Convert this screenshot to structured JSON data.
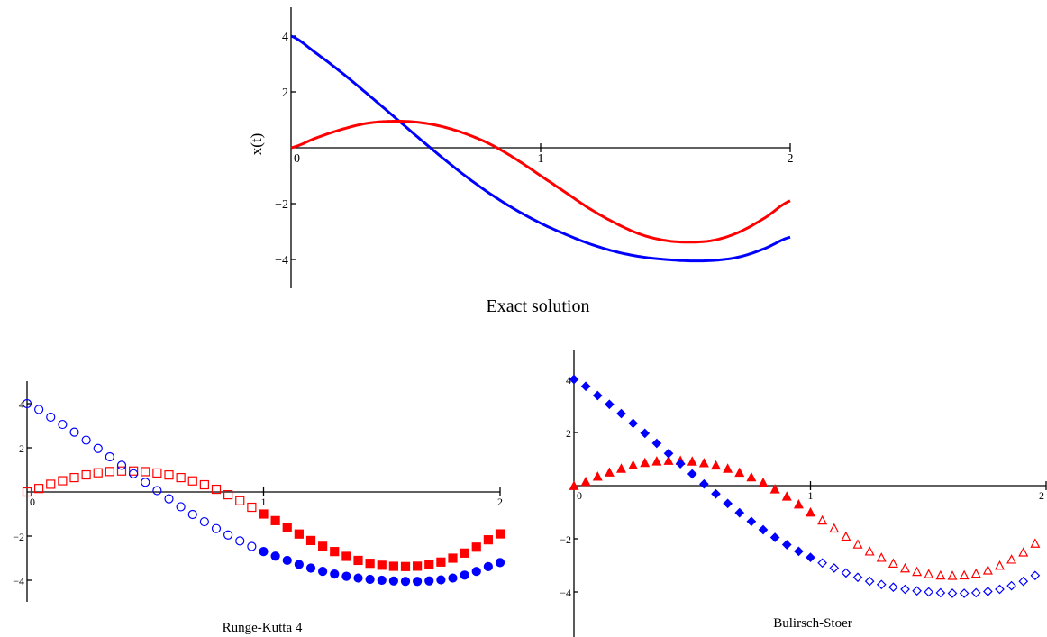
{
  "chart_data": [
    {
      "type": "line",
      "title": "Exact solution",
      "ylabel": "x(t)",
      "xlabel": "",
      "xlim": [
        0,
        2
      ],
      "ylim": [
        -5,
        5
      ],
      "xticks": [
        "0",
        "1",
        "2"
      ],
      "yticks": [
        "4",
        "2",
        "−2",
        "−4"
      ],
      "series": [
        {
          "color": "#0000ff",
          "style": "line",
          "x": [
            0,
            0.1,
            0.2,
            0.3,
            0.4,
            0.5,
            0.6,
            0.7,
            0.8,
            0.9,
            1.0,
            1.1,
            1.2,
            1.3,
            1.4,
            1.5,
            1.6,
            1.7,
            1.8,
            1.9,
            2.0
          ],
          "y": [
            4.0,
            3.39,
            2.71,
            1.97,
            1.21,
            0.44,
            -0.31,
            -1.02,
            -1.66,
            -2.22,
            -2.7,
            -3.1,
            -3.45,
            -3.72,
            -3.9,
            -4.0,
            -4.05,
            -4.03,
            -3.9,
            -3.6,
            -3.2
          ]
        },
        {
          "color": "#ff0000",
          "style": "line",
          "x": [
            0,
            0.1,
            0.2,
            0.3,
            0.4,
            0.5,
            0.6,
            0.7,
            0.8,
            0.9,
            1.0,
            1.1,
            1.2,
            1.3,
            1.4,
            1.5,
            1.6,
            1.7,
            1.8,
            1.9,
            2.0
          ],
          "y": [
            0.0,
            0.35,
            0.65,
            0.87,
            0.95,
            0.92,
            0.77,
            0.5,
            0.12,
            -0.4,
            -1.0,
            -1.6,
            -2.2,
            -2.7,
            -3.1,
            -3.32,
            -3.38,
            -3.3,
            -3.0,
            -2.5,
            -1.9
          ]
        }
      ]
    },
    {
      "type": "scatter",
      "title": "Runge-Kutta 4",
      "xlabel": "",
      "ylabel": "",
      "xlim": [
        0,
        2
      ],
      "ylim": [
        -5,
        5
      ],
      "xticks": [
        "0",
        "1",
        "2"
      ],
      "yticks": [
        "4",
        "2",
        "−2",
        "−4"
      ],
      "series": [
        {
          "color": "#ff0000",
          "style": "points",
          "marker": "square",
          "marker_open_until_x": 1.0
        },
        {
          "color": "#0000ff",
          "style": "points",
          "marker": "circle",
          "marker_open_until_x": 1.0
        }
      ]
    },
    {
      "type": "scatter",
      "title": "Bulirsch-Stoer",
      "xlabel": "",
      "ylabel": "",
      "xlim": [
        0,
        2
      ],
      "ylim": [
        -5,
        5
      ],
      "xticks": [
        "0",
        "1",
        "2"
      ],
      "yticks": [
        "4",
        "2",
        "−2",
        "−4"
      ],
      "series": [
        {
          "color": "#ff0000",
          "style": "points",
          "marker": "triangle",
          "marker_open_after_x": 1.0
        },
        {
          "color": "#0000ff",
          "style": "points",
          "marker": "diamond",
          "marker_open_after_x": 1.0
        }
      ]
    }
  ]
}
